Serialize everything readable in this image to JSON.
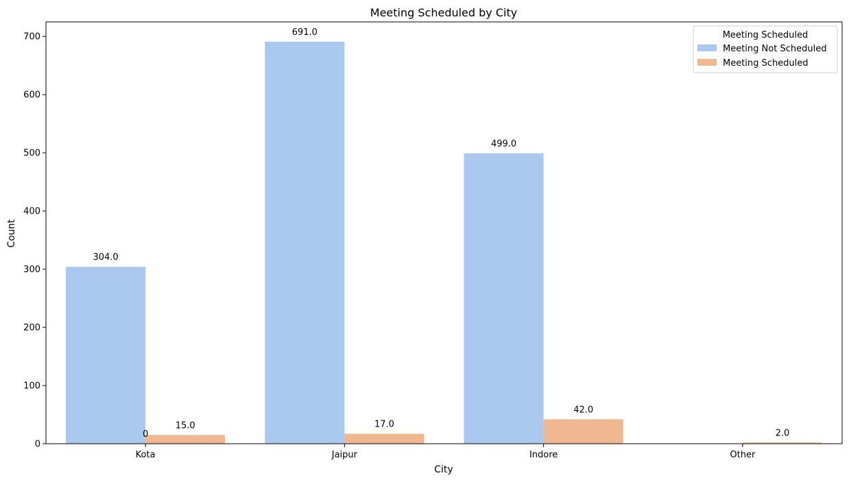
{
  "chart_data": {
    "type": "bar",
    "title": "Meeting Scheduled by City",
    "xlabel": "City",
    "ylabel": "Count",
    "categories": [
      "Kota",
      "Jaipur",
      "Indore",
      "Other"
    ],
    "series": [
      {
        "name": "Meeting Not Scheduled",
        "color": "#abc9ee",
        "values": [
          304,
          691,
          499,
          0
        ],
        "labels": [
          "304.0",
          "691.0",
          "499.0",
          ""
        ]
      },
      {
        "name": "Meeting Scheduled",
        "color": "#f0b890",
        "values": [
          15,
          17,
          42,
          2
        ],
        "labels": [
          "15.0",
          "17.0",
          "42.0",
          "2.0"
        ]
      }
    ],
    "extra_annotation": {
      "text": "0",
      "category_index": 0,
      "value": 0
    },
    "ylim": [
      0,
      725
    ],
    "yticks": [
      0,
      100,
      200,
      300,
      400,
      500,
      600,
      700
    ],
    "ytick_labels": [
      "0",
      "100",
      "200",
      "300",
      "400",
      "500",
      "600",
      "700"
    ],
    "legend": {
      "title": "Meeting Scheduled",
      "position": "top-right"
    },
    "grid": false
  }
}
